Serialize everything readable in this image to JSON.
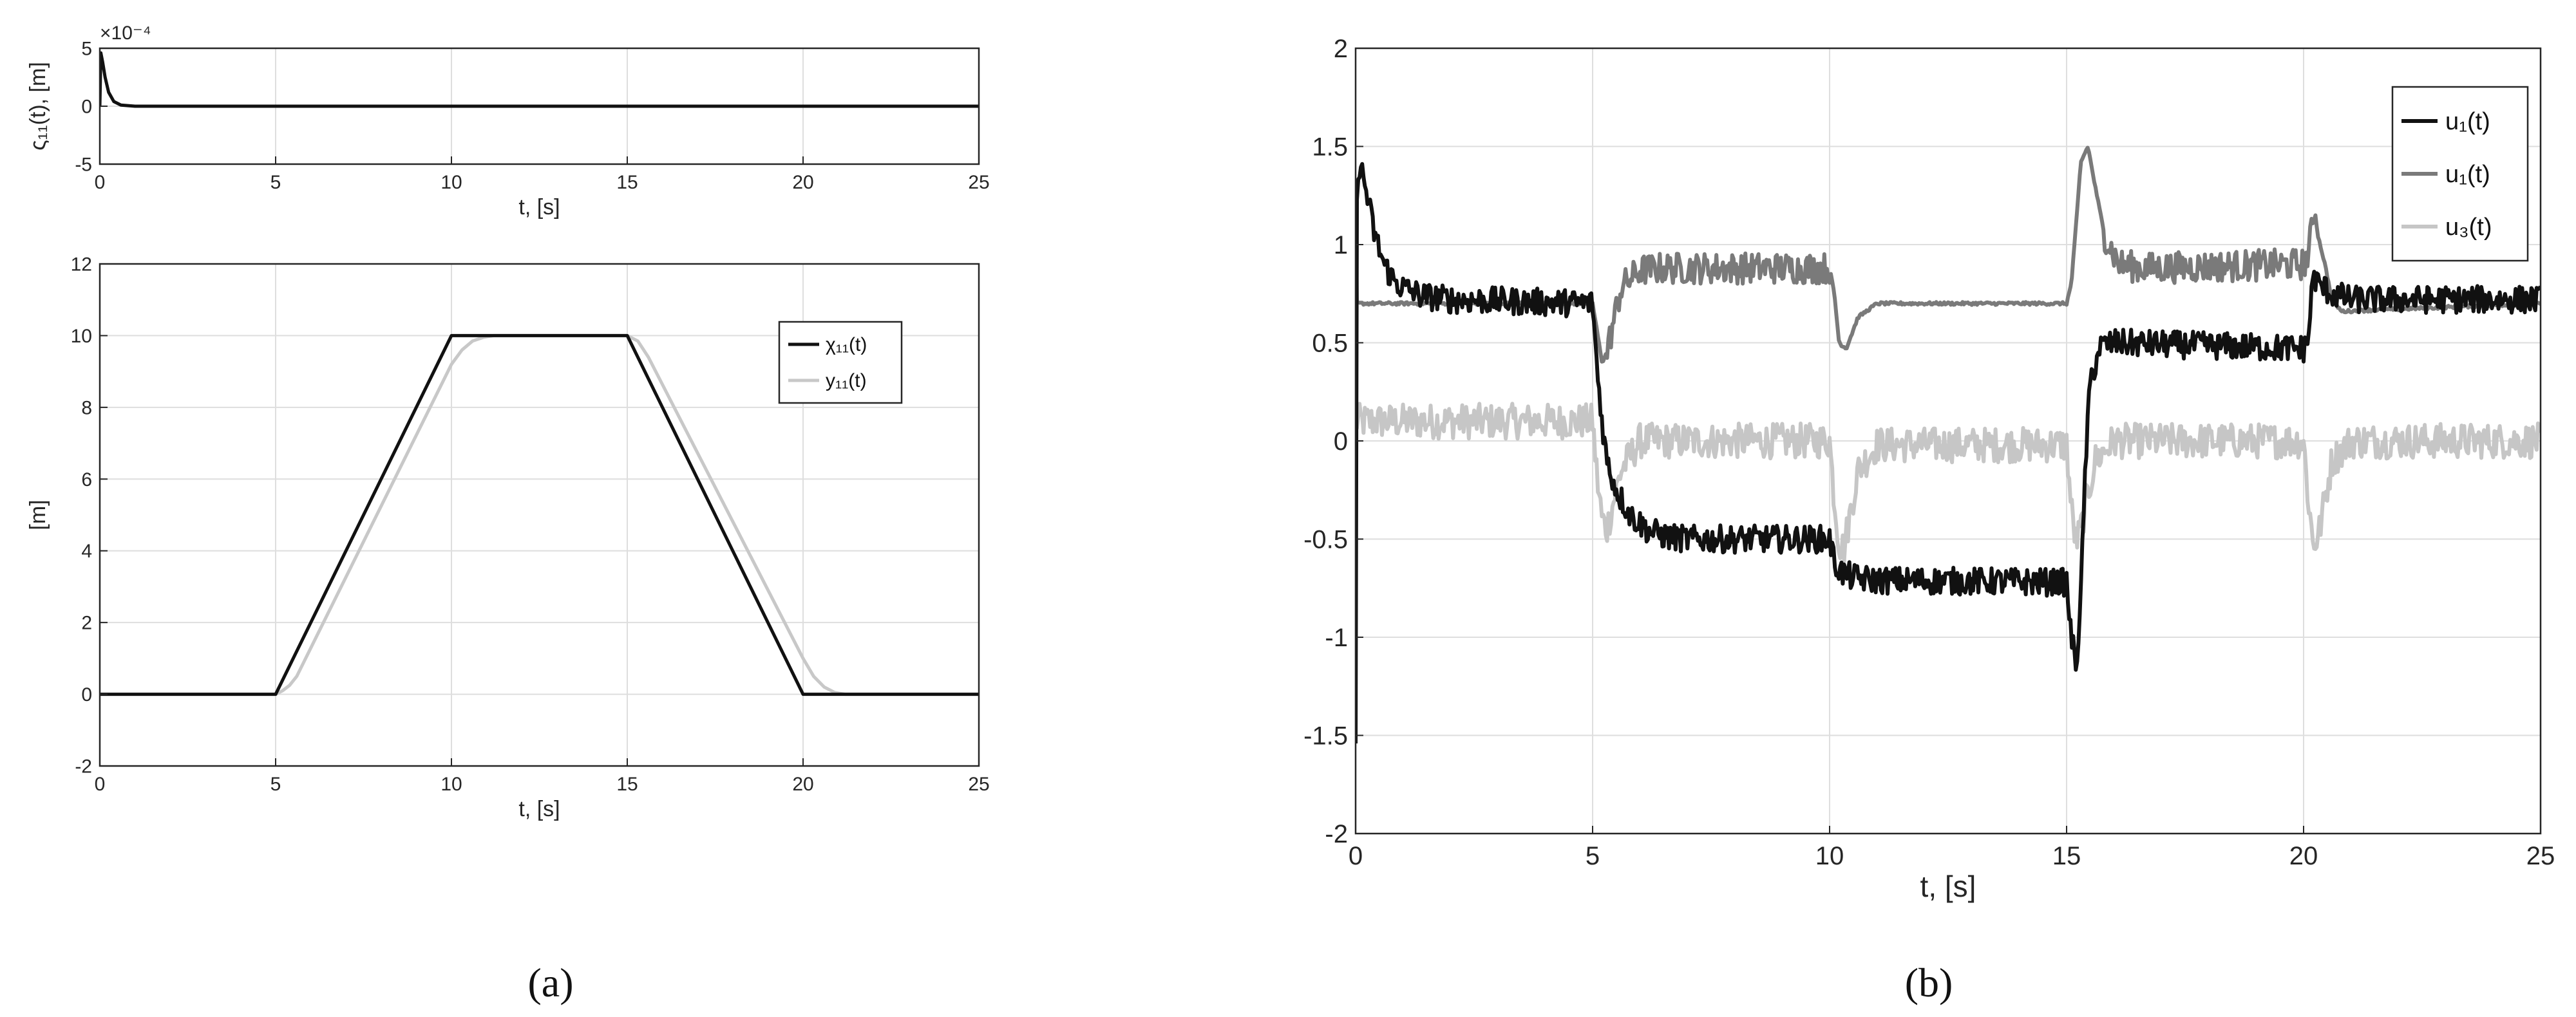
{
  "chart_data": [
    {
      "panel": "a-top",
      "type": "line",
      "xlabel": "t, [s]",
      "ylabel": "ς₁₁(t), [m]",
      "exponent_label": "×10⁻⁴",
      "xlim": [
        0,
        25
      ],
      "ylim": [
        -5,
        5
      ],
      "xticks": [
        0,
        5,
        10,
        15,
        20,
        25
      ],
      "yticks": [
        -5,
        0,
        5
      ],
      "grid": true,
      "series": [
        {
          "color": "#111111",
          "x": [
            0,
            0.03,
            0.08,
            0.15,
            0.25,
            0.4,
            0.6,
            1,
            25
          ],
          "y": [
            0,
            4.6,
            3.8,
            2.5,
            1.2,
            0.4,
            0.1,
            0,
            0
          ]
        }
      ]
    },
    {
      "panel": "a-bottom",
      "type": "line",
      "xlabel": "t, [s]",
      "ylabel": "[m]",
      "xlim": [
        0,
        25
      ],
      "ylim": [
        -2,
        12
      ],
      "xticks": [
        0,
        5,
        10,
        15,
        20,
        25
      ],
      "yticks": [
        -2,
        0,
        2,
        4,
        6,
        8,
        10,
        12
      ],
      "grid": true,
      "legend_position": "top-right",
      "series": [
        {
          "name": "χ₁₁(t)",
          "color": "#111111",
          "x": [
            0,
            5,
            10,
            15,
            20,
            25
          ],
          "y": [
            0,
            0,
            10,
            10,
            0,
            0
          ]
        },
        {
          "name": "y₁₁(t)",
          "color": "#c8c8c8",
          "x": [
            0,
            5,
            5.2,
            5.4,
            5.6,
            10,
            10.3,
            10.6,
            10.9,
            11.2,
            15,
            15.3,
            15.6,
            20,
            20.3,
            20.6,
            20.9,
            21.2,
            25
          ],
          "y": [
            0,
            0,
            0.1,
            0.25,
            0.5,
            9.2,
            9.6,
            9.85,
            9.95,
            10,
            10,
            9.85,
            9.4,
            1.0,
            0.5,
            0.2,
            0.05,
            0,
            0
          ]
        }
      ]
    },
    {
      "panel": "b",
      "type": "line",
      "xlabel": "t, [s]",
      "ylabel": "",
      "xlim": [
        0,
        25
      ],
      "ylim": [
        -2,
        2
      ],
      "xticks": [
        0,
        5,
        10,
        15,
        20,
        25
      ],
      "yticks": [
        -2,
        -1.5,
        -1,
        -0.5,
        0,
        0.5,
        1,
        1.5,
        2
      ],
      "grid": true,
      "legend_position": "top-right",
      "series": [
        {
          "name": "u₁(t)",
          "color": "#111111",
          "noise": 0.035,
          "x": [
            0,
            0.03,
            0.1,
            0.2,
            0.4,
            0.6,
            0.8,
            1.0,
            1.4,
            2,
            5,
            5.1,
            5.2,
            5.3,
            5.5,
            5.8,
            6.2,
            6.6,
            7,
            10,
            10.1,
            10.3,
            10.6,
            11,
            15,
            15.1,
            15.2,
            15.3,
            15.4,
            15.5,
            15.7,
            16,
            20,
            20.1,
            20.2,
            20.3,
            20.6,
            21,
            25
          ],
          "y": [
            -1.6,
            1.4,
            1.4,
            1.3,
            1.05,
            0.9,
            0.82,
            0.78,
            0.74,
            0.72,
            0.7,
            0.35,
            0.1,
            -0.1,
            -0.25,
            -0.38,
            -0.46,
            -0.49,
            -0.5,
            -0.5,
            -0.62,
            -0.68,
            -0.7,
            -0.71,
            -0.72,
            -1.0,
            -1.15,
            -0.8,
            -0.1,
            0.3,
            0.48,
            0.5,
            0.47,
            0.52,
            0.85,
            0.8,
            0.75,
            0.72,
            0.72
          ]
        },
        {
          "name": "u₁(t)",
          "color": "#7a7a7a",
          "noise": 0.025,
          "x": [
            0,
            0.02,
            0.1,
            0.2,
            5,
            5.1,
            5.2,
            5.3,
            5.6,
            6,
            6.5,
            10,
            10.1,
            10.2,
            10.35,
            10.6,
            11,
            15,
            15.1,
            15.2,
            15.3,
            15.45,
            15.6,
            15.8,
            16.1,
            16.6,
            20,
            20.1,
            20.2,
            20.25,
            20.3,
            20.45,
            20.6,
            20.8,
            25
          ],
          "y": [
            1.2,
            0.7,
            0.7,
            0.7,
            0.7,
            0.55,
            0.4,
            0.45,
            0.78,
            0.87,
            0.88,
            0.88,
            0.75,
            0.5,
            0.47,
            0.63,
            0.7,
            0.7,
            0.8,
            1.1,
            1.42,
            1.5,
            1.3,
            1.05,
            0.9,
            0.88,
            0.9,
            0.95,
            1.12,
            1.15,
            1.05,
            0.9,
            0.72,
            0.66,
            0.7
          ],
          "noisy_ranges": [
            [
              5.3,
              10.0
            ],
            [
              15.8,
              20.2
            ]
          ]
        },
        {
          "name": "u₃(t)",
          "color": "#c6c6c6",
          "noise": 0.045,
          "x": [
            0,
            5,
            5.1,
            5.2,
            5.3,
            5.6,
            6,
            10,
            10.1,
            10.2,
            10.3,
            10.6,
            11,
            15,
            15.1,
            15.2,
            15.3,
            15.6,
            16,
            20,
            20.1,
            20.2,
            20.3,
            20.6,
            21,
            25
          ],
          "y": [
            0.1,
            0.1,
            -0.2,
            -0.4,
            -0.45,
            -0.15,
            0,
            0,
            -0.3,
            -0.52,
            -0.55,
            -0.15,
            -0.02,
            -0.02,
            -0.35,
            -0.52,
            -0.45,
            -0.1,
            0,
            0,
            -0.3,
            -0.52,
            -0.5,
            -0.1,
            0,
            0
          ]
        }
      ]
    }
  ],
  "captions": {
    "a": "(a)",
    "b": "(b)"
  }
}
